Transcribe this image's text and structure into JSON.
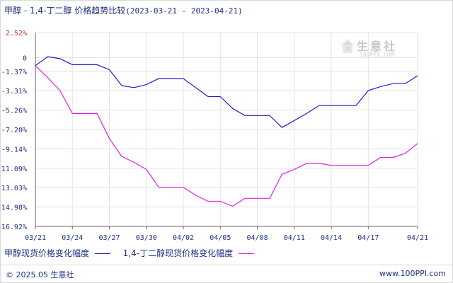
{
  "title": {
    "main": "甲醇 - 1,4-丁二醇 价格趋势比较",
    "range": "(2023-03-21 - 2023-04-21)"
  },
  "watermark": {
    "text": "生意社",
    "url": "100PPI.COM"
  },
  "footer": {
    "copyright": "© 2025.05 生意社",
    "site": "www.100PPI.com"
  },
  "colors": {
    "series_1": "#1e1ed2",
    "series_2": "#e61ee6",
    "grid": "#e3e3e3",
    "axis": "#666666",
    "label": "#1f2f86",
    "top_label": "#d03030"
  },
  "chart_data": {
    "type": "line",
    "ylim": [
      -16.92,
      2.52
    ],
    "yticks": [
      "2.52%",
      "0",
      "-1.37%",
      "-3.31%",
      "-5.26%",
      "-7.20%",
      "-9.14%",
      "-11.09%",
      "-13.03%",
      "-14.98%",
      "-16.92%"
    ],
    "ytick_values": [
      2.52,
      0,
      -1.37,
      -3.31,
      -5.26,
      -7.2,
      -9.14,
      -11.09,
      -13.03,
      -14.98,
      -16.92
    ],
    "xticks": [
      "03/21",
      "03/24",
      "03/27",
      "03/30",
      "04/02",
      "04/05",
      "04/08",
      "04/11",
      "04/14",
      "04/17",
      "04/21"
    ],
    "xtick_days": [
      0,
      3,
      6,
      9,
      12,
      15,
      18,
      21,
      24,
      27,
      31
    ],
    "grid": true,
    "legend_position": "bottom-left",
    "series": [
      {
        "name": "甲醇现货价格变化幅度",
        "points": [
          [
            0,
            -0.8
          ],
          [
            1,
            0.1
          ],
          [
            2,
            -0.1
          ],
          [
            3,
            -0.7
          ],
          [
            5,
            -0.7
          ],
          [
            6,
            -1.2
          ],
          [
            7,
            -2.8
          ],
          [
            8,
            -3.0
          ],
          [
            9,
            -2.7
          ],
          [
            10,
            -2.1
          ],
          [
            12,
            -2.1
          ],
          [
            13,
            -3.0
          ],
          [
            14,
            -3.9
          ],
          [
            15,
            -3.9
          ],
          [
            16,
            -5.1
          ],
          [
            17,
            -5.8
          ],
          [
            19,
            -5.8
          ],
          [
            20,
            -7.0
          ],
          [
            21,
            -6.3
          ],
          [
            22,
            -5.6
          ],
          [
            23,
            -4.8
          ],
          [
            26,
            -4.8
          ],
          [
            27,
            -3.3
          ],
          [
            28,
            -2.9
          ],
          [
            29,
            -2.6
          ],
          [
            30,
            -2.6
          ],
          [
            31,
            -1.8
          ]
        ]
      },
      {
        "name": "1,4-丁二醇现货价格变化幅度",
        "points": [
          [
            0,
            -0.8
          ],
          [
            1,
            -2.0
          ],
          [
            2,
            -3.3
          ],
          [
            3,
            -5.6
          ],
          [
            5,
            -5.6
          ],
          [
            6,
            -8.1
          ],
          [
            7,
            -9.9
          ],
          [
            8,
            -10.5
          ],
          [
            9,
            -11.2
          ],
          [
            10,
            -13.0
          ],
          [
            12,
            -13.0
          ],
          [
            13,
            -13.8
          ],
          [
            14,
            -14.4
          ],
          [
            15,
            -14.4
          ],
          [
            16,
            -14.9
          ],
          [
            17,
            -14.1
          ],
          [
            19,
            -14.1
          ],
          [
            20,
            -11.7
          ],
          [
            21,
            -11.2
          ],
          [
            22,
            -10.6
          ],
          [
            23,
            -10.6
          ],
          [
            24,
            -10.8
          ],
          [
            27,
            -10.8
          ],
          [
            28,
            -10.0
          ],
          [
            29,
            -10.0
          ],
          [
            30,
            -9.6
          ],
          [
            31,
            -8.6
          ]
        ]
      }
    ]
  }
}
